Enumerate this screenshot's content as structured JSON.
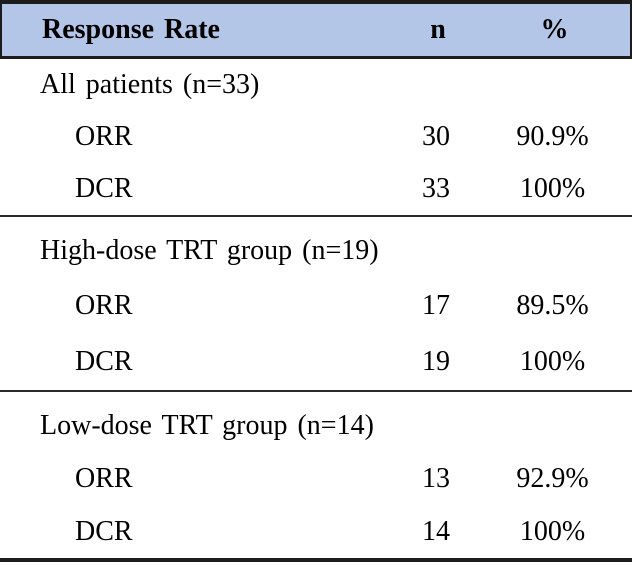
{
  "table": {
    "colors": {
      "header_bg": "#b4c6e7",
      "border": "#1c1c1c",
      "text": "#000000"
    },
    "header": {
      "col_label": "Response Rate",
      "col_n": "n",
      "col_pct": "%"
    },
    "sections": [
      {
        "label": "All patients (n=33)",
        "rows": [
          {
            "name": "ORR",
            "n": "30",
            "pct": "90.9%"
          },
          {
            "name": "DCR",
            "n": "33",
            "pct": "100%"
          }
        ]
      },
      {
        "label": "High-dose TRT group (n=19)",
        "rows": [
          {
            "name": "ORR",
            "n": "17",
            "pct": "89.5%"
          },
          {
            "name": "DCR",
            "n": "19",
            "pct": "100%"
          }
        ]
      },
      {
        "label": "Low-dose TRT group (n=14)",
        "rows": [
          {
            "name": "ORR",
            "n": "13",
            "pct": "92.9%"
          },
          {
            "name": "DCR",
            "n": "14",
            "pct": "100%"
          }
        ]
      }
    ]
  }
}
